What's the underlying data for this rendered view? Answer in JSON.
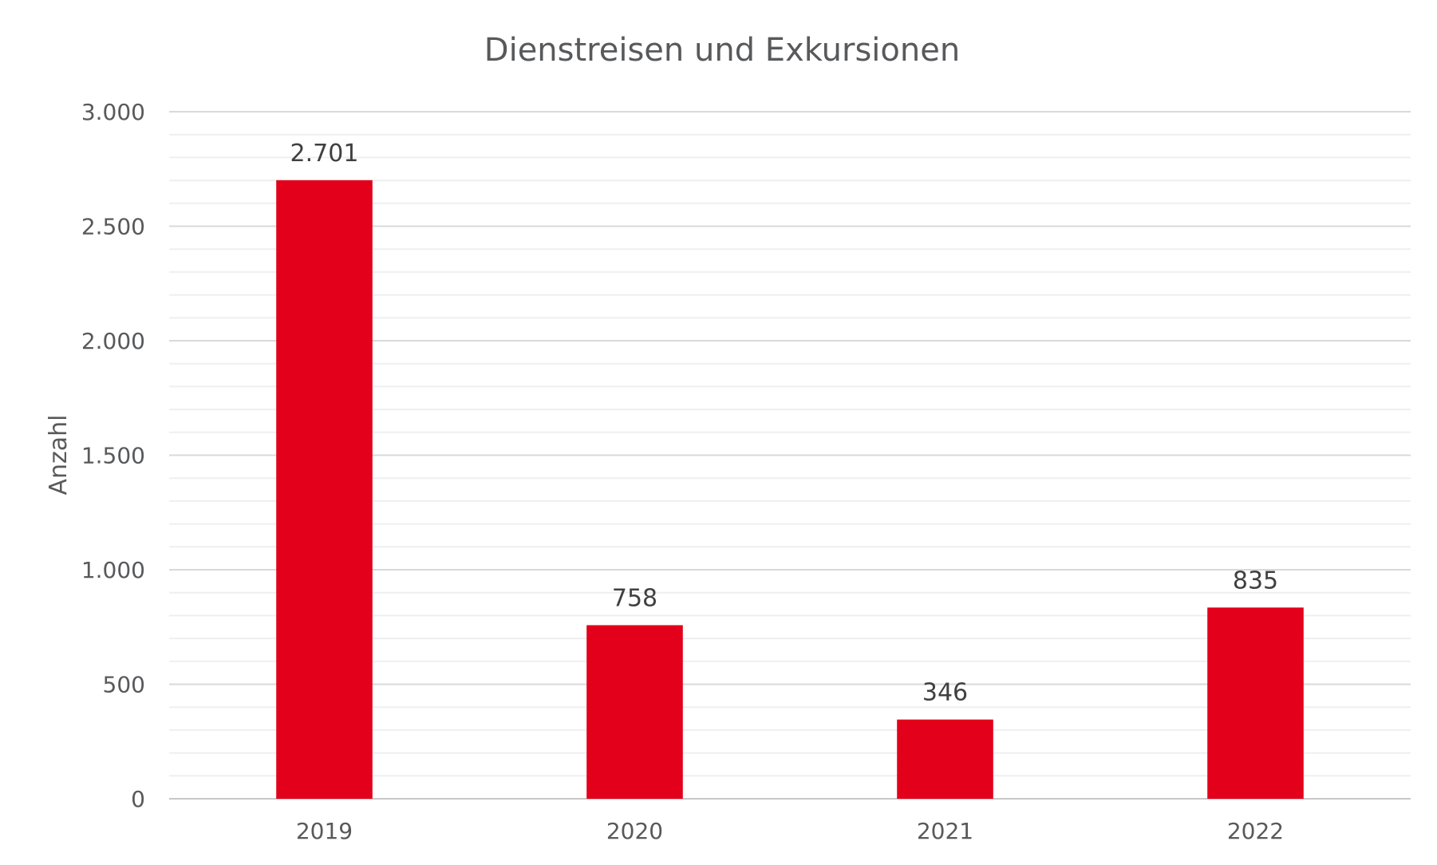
{
  "chart_data": {
    "type": "bar",
    "title": "Dienstreisen und Exkursionen",
    "xlabel": "",
    "ylabel": "Anzahl",
    "categories": [
      "2019",
      "2020",
      "2021",
      "2022"
    ],
    "values": [
      2701,
      758,
      346,
      835
    ],
    "data_labels": [
      "2.701",
      "758",
      "346",
      "835"
    ],
    "yticks": [
      0,
      500,
      1000,
      1500,
      2000,
      2500,
      3000
    ],
    "ytick_labels": [
      "0",
      "500",
      "1.000",
      "1.500",
      "2.000",
      "2.500",
      "3.000"
    ],
    "ylim": [
      0,
      3000
    ],
    "minor_grid_step": 100,
    "grid": true,
    "legend": "none"
  },
  "colors": {
    "bar": "#e3001b",
    "text": "#58595b",
    "major_grid": "#d9d9d9",
    "minor_grid": "#efefef",
    "axis": "#c8c8c8"
  }
}
